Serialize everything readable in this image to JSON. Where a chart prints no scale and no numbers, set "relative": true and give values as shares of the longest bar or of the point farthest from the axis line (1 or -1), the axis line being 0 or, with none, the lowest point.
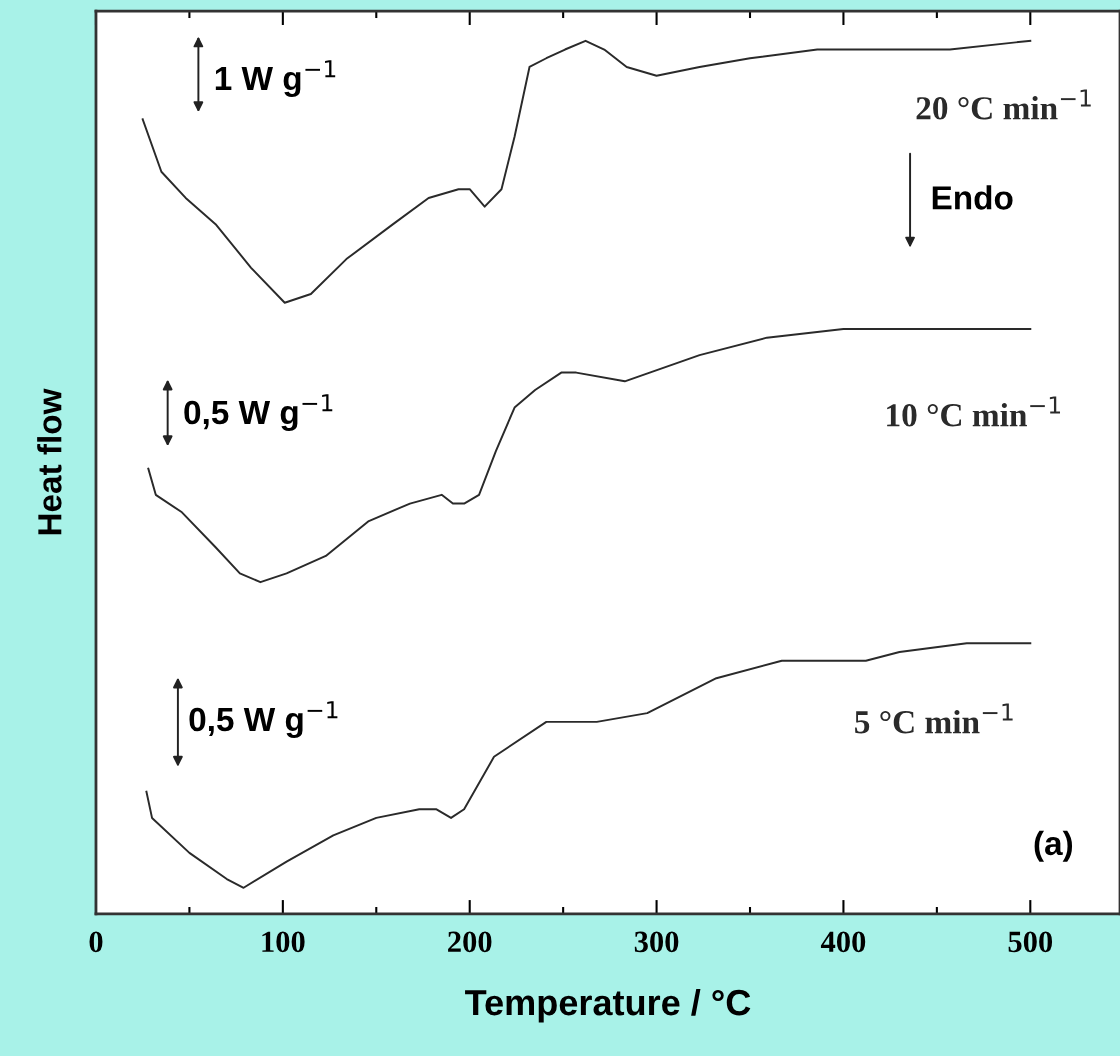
{
  "chart_data": {
    "type": "line",
    "relative": true,
    "xlabel": "Temperature / °C",
    "ylabel": "Heat flow",
    "xlim": [
      0,
      548
    ],
    "xticks": [
      0,
      100,
      200,
      300,
      400,
      500
    ],
    "grid": false,
    "legend": false,
    "marker": "none",
    "line_style": "solid",
    "tick_labels": "x",
    "series": [
      {
        "name": "20 °C min$^{−1}$",
        "color": "#2a2a2a",
        "x": [
          25,
          35,
          48,
          64,
          83,
          101,
          115,
          134,
          159,
          178,
          194,
          200,
          208,
          217,
          224,
          232,
          241,
          251,
          262,
          272,
          284,
          300,
          323,
          350,
          386,
          412,
          457,
          500
        ],
        "values": [
          0.91,
          0.85,
          0.82,
          0.79,
          0.74,
          0.7,
          0.71,
          0.75,
          0.79,
          0.82,
          0.83,
          0.83,
          0.81,
          0.83,
          0.89,
          0.97,
          0.98,
          0.99,
          1.0,
          0.99,
          0.97,
          0.96,
          0.97,
          0.98,
          0.99,
          0.99,
          0.99,
          1.0
        ]
      },
      {
        "name": "10 °C min$^{−1}$",
        "color": "#2a2a2a",
        "x": [
          28,
          32,
          46,
          64,
          77,
          88,
          102,
          123,
          146,
          168,
          185,
          191,
          197,
          205,
          214,
          224,
          235,
          249,
          257,
          283,
          323,
          359,
          400,
          500
        ],
        "values": [
          0.51,
          0.48,
          0.46,
          0.42,
          0.39,
          0.38,
          0.39,
          0.41,
          0.45,
          0.47,
          0.48,
          0.47,
          0.47,
          0.48,
          0.53,
          0.58,
          0.6,
          0.62,
          0.62,
          0.61,
          0.64,
          0.66,
          0.67,
          0.67
        ]
      },
      {
        "name": "5 °C min$^{−1}$",
        "color": "#2a2a2a",
        "x": [
          27,
          30,
          50,
          70,
          79,
          102,
          127,
          150,
          173,
          182,
          190,
          197,
          213,
          241,
          249,
          268,
          295,
          332,
          367,
          394,
          412,
          430,
          466,
          500
        ],
        "values": [
          0.14,
          0.11,
          0.07,
          0.04,
          0.03,
          0.06,
          0.09,
          0.11,
          0.12,
          0.12,
          0.11,
          0.12,
          0.18,
          0.22,
          0.22,
          0.22,
          0.23,
          0.27,
          0.29,
          0.29,
          0.29,
          0.3,
          0.31,
          0.31
        ]
      }
    ],
    "annotations": [
      "1 W g$^{−1}$",
      "0,5 W g$^{−1}$",
      "0,5 W g$^{−1}$",
      "Endo",
      "(a)"
    ]
  }
}
